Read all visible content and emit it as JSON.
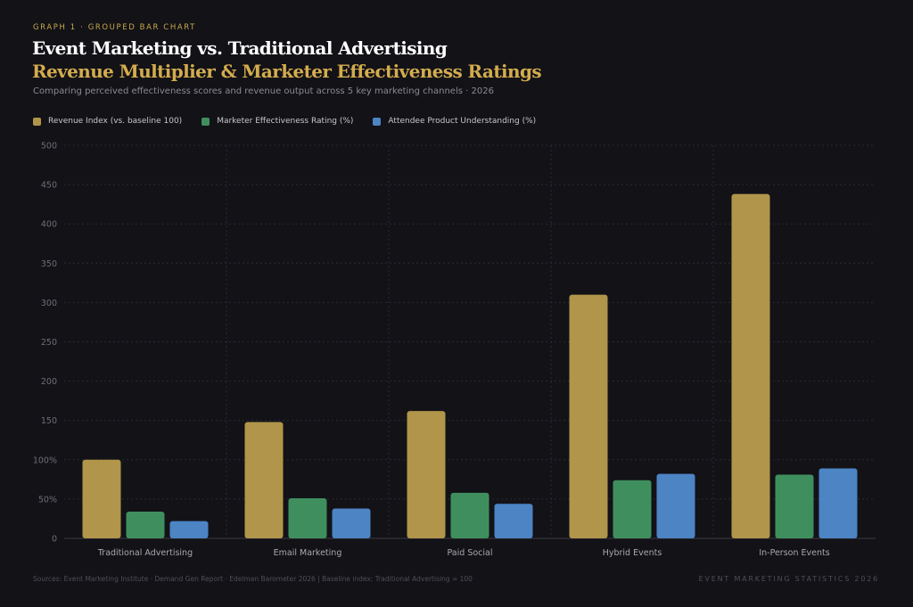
{
  "header": {
    "eyebrow": "GRAPH 1  ·  GROUPED BAR CHART",
    "title_line1": "Event Marketing vs. Traditional Advertising",
    "title_line2": "Revenue Multiplier & Marketer Effectiveness Ratings",
    "subtitle": "Comparing perceived effectiveness scores and revenue output across 5 key marketing channels  ·  2026"
  },
  "colors": {
    "revenue": "#b0954a",
    "effectiveness": "#3f8f5e",
    "understanding": "#4c84c4",
    "grid": "#2b2b33",
    "axis_text": "#6e6e76"
  },
  "footer": {
    "sources": "Sources: Event Marketing Institute · Demand Gen Report · Edelman Barometer 2026  |  Baseline index: Traditional Advertising = 100",
    "brand": "EVENT MARKETING STATISTICS 2026"
  },
  "chart_data": {
    "type": "bar",
    "title": "Event Marketing vs. Traditional Advertising",
    "subtitle": "Revenue Multiplier & Marketer Effectiveness Ratings",
    "categories": [
      "Traditional Advertising",
      "Email Marketing",
      "Paid Social",
      "Hybrid Events",
      "In-Person Events"
    ],
    "series": [
      {
        "name": "Revenue Index (vs. baseline 100)",
        "values": [
          100,
          148,
          162,
          310,
          438
        ]
      },
      {
        "name": "Marketer Effectiveness Rating (%)",
        "values": [
          34,
          51,
          58,
          74,
          81
        ]
      },
      {
        "name": "Attendee Product Understanding (%)",
        "values": [
          22,
          38,
          44,
          82,
          89
        ]
      }
    ],
    "ylim": [
      0,
      500
    ],
    "y_ticks": [
      {
        "value": 0,
        "label": "0"
      },
      {
        "value": 50,
        "label": "50%"
      },
      {
        "value": 100,
        "label": "100%"
      },
      {
        "value": 150,
        "label": "150"
      },
      {
        "value": 200,
        "label": "200"
      },
      {
        "value": 250,
        "label": "250"
      },
      {
        "value": 300,
        "label": "300"
      },
      {
        "value": 350,
        "label": "350"
      },
      {
        "value": 400,
        "label": "400"
      },
      {
        "value": 450,
        "label": "450"
      },
      {
        "value": 500,
        "label": "500"
      }
    ],
    "grid": true,
    "legend_position": "top-left"
  }
}
